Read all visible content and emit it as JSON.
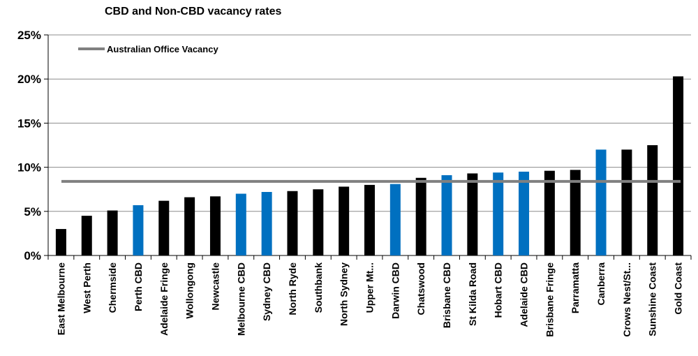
{
  "chart_data": {
    "type": "bar",
    "title": "CBD and Non-CBD vacancy rates",
    "xlabel": "",
    "ylabel": "",
    "ylim": [
      0,
      25
    ],
    "yticks": [
      "0%",
      "5%",
      "10%",
      "15%",
      "20%",
      "25%"
    ],
    "grid": true,
    "legend_position": "top-left",
    "categories": [
      "East Melbourne",
      "West Perth",
      "Chermside",
      "Perth CBD",
      "Adelaide Fringe",
      "Wollongong",
      "Newcastle",
      "Melbourne CBD",
      "Sydney CBD",
      "North Ryde",
      "Southbank",
      "North Sydney",
      "Upper Mt...",
      "Darwin CBD",
      "Chatswood",
      "Brisbane CBD",
      "St Kilda Road",
      "Hobart CBD",
      "Adelaide CBD",
      "Brisbane Fringe",
      "Parramatta",
      "Canberra",
      "Crows Nest/St...",
      "Sunshine Coast",
      "Gold Coast"
    ],
    "values": [
      3.0,
      4.5,
      5.1,
      5.7,
      6.2,
      6.6,
      6.7,
      7.0,
      7.2,
      7.3,
      7.5,
      7.8,
      8.0,
      8.1,
      8.8,
      9.1,
      9.3,
      9.4,
      9.5,
      9.6,
      9.7,
      12.0,
      12.0,
      12.5,
      20.3
    ],
    "bar_colors": [
      "#000000",
      "#000000",
      "#000000",
      "#0070C0",
      "#000000",
      "#000000",
      "#000000",
      "#0070C0",
      "#0070C0",
      "#000000",
      "#000000",
      "#000000",
      "#000000",
      "#0070C0",
      "#000000",
      "#0070C0",
      "#000000",
      "#0070C0",
      "#0070C0",
      "#000000",
      "#000000",
      "#0070C0",
      "#000000",
      "#000000",
      "#000000"
    ],
    "reference_line": {
      "name": "Australian Office Vacancy",
      "value": 8.4,
      "color": "#808080"
    }
  }
}
